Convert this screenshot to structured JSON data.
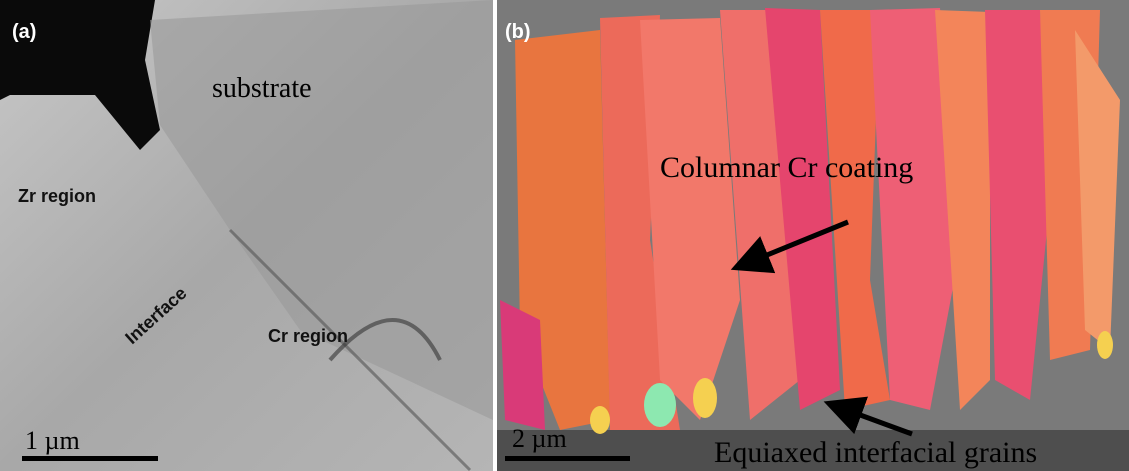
{
  "panel_a": {
    "label": "(a)",
    "annotations": [
      "substrate",
      "Zr region",
      "Interface",
      "Cr region"
    ],
    "scale_bar": "1 µm"
  },
  "panel_b": {
    "label": "(b)",
    "annotations": [
      "Columnar Cr coating",
      "Equiaxed interfacial grains"
    ],
    "scale_bar": "2 µm"
  }
}
